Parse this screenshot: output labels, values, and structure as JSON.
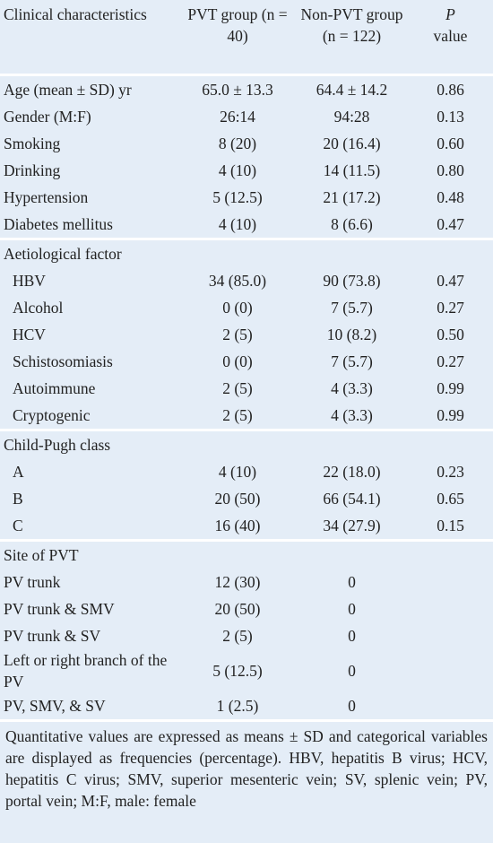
{
  "table": {
    "header": [
      "Clinical characteristics",
      "PVT group (n = 40)",
      "Non-PVT group (n = 122)",
      {
        "italic": "P",
        "text": "value"
      }
    ],
    "sections": [
      {
        "rows": [
          [
            "Age (mean ± SD) yr",
            "65.0 ± 13.3",
            "64.4 ± 14.2",
            "0.86"
          ],
          [
            "Gender (M:F)",
            "26:14",
            "94:28",
            "0.13"
          ],
          [
            "Smoking",
            "8 (20)",
            "20 (16.4)",
            "0.60"
          ],
          [
            "Drinking",
            "4 (10)",
            "14 (11.5)",
            "0.80"
          ],
          [
            "Hypertension",
            "5 (12.5)",
            "21 (17.2)",
            "0.48"
          ],
          [
            "Diabetes mellitus",
            "4 (10)",
            "8 (6.6)",
            "0.47"
          ]
        ]
      },
      {
        "title": "Aetiological factor",
        "rows": [
          [
            "HBV",
            "34 (85.0)",
            "90 (73.8)",
            "0.47"
          ],
          [
            "Alcohol",
            "0 (0)",
            "7 (5.7)",
            "0.27"
          ],
          [
            "HCV",
            "2 (5)",
            "10 (8.2)",
            "0.50"
          ],
          [
            "Schistosomiasis",
            "0 (0)",
            "7 (5.7)",
            "0.27"
          ],
          [
            "Autoimmune",
            "2 (5)",
            "4 (3.3)",
            "0.99"
          ],
          [
            "Cryptogenic",
            "2 (5)",
            "4 (3.3)",
            "0.99"
          ]
        ]
      },
      {
        "title": "Child-Pugh class",
        "rows": [
          [
            "A",
            "4 (10)",
            "22 (18.0)",
            "0.23"
          ],
          [
            "B",
            "20 (50)",
            "66 (54.1)",
            "0.65"
          ],
          [
            "C",
            "16 (40)",
            "34 (27.9)",
            "0.15"
          ]
        ]
      },
      {
        "title": "Site of PVT",
        "rows": [
          [
            "PV trunk",
            "12 (30)",
            "0"
          ],
          [
            "PV trunk & SMV",
            "20 (50)",
            "0"
          ],
          [
            "PV trunk & SV",
            "2 (5)",
            "0"
          ],
          [
            "Left or right branch of the PV",
            "5 (12.5)",
            "0"
          ],
          [
            "PV, SMV, & SV",
            "1 (2.5)",
            "0"
          ]
        ]
      }
    ]
  },
  "footnote": "Quantitative values are expressed as means ± SD and categorical variables are displayed as frequencies (percentage). HBV, hepatitis B virus; HCV, hepatitis C virus; SMV, superior mesenteric vein; SV, splenic vein; PV, portal vein; M:F, male: female"
}
